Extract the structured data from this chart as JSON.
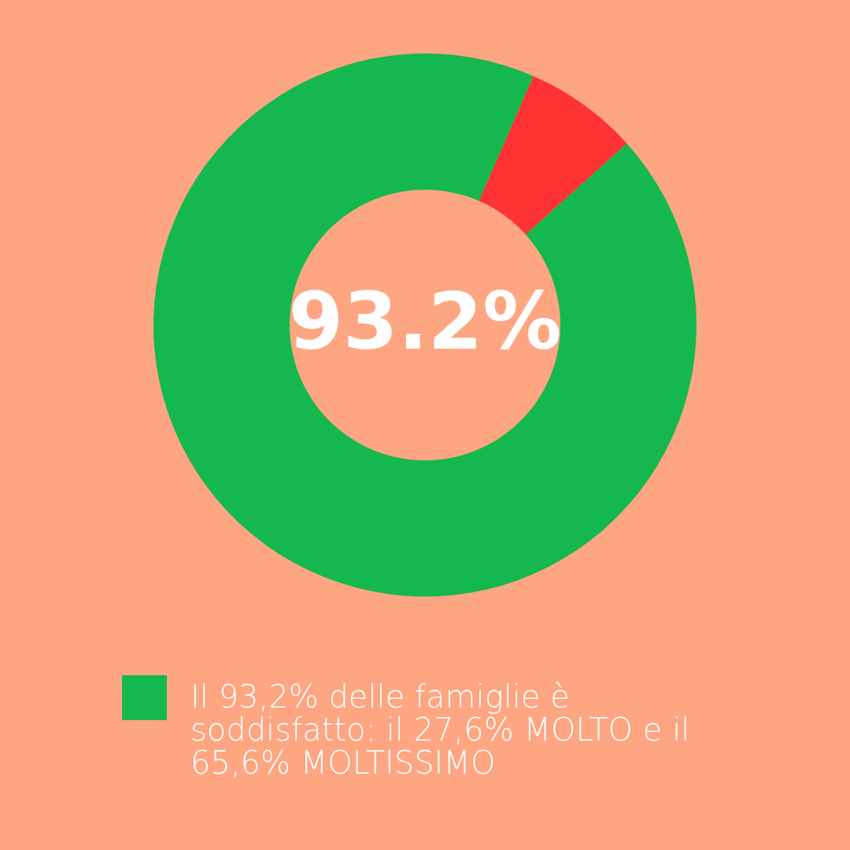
{
  "chart_data": {
    "type": "donut",
    "categories": [
      "Il 93,2% delle famiglie è soddisfatto: il 27,6% MOLTO e il 65,6% MOLTISSIMO",
      null
    ],
    "values": [
      93.2,
      6.8
    ],
    "colors": [
      "#14b84e",
      "#ff3333"
    ],
    "annotations": [
      "93.2%"
    ],
    "legend": "bottom left"
  }
}
